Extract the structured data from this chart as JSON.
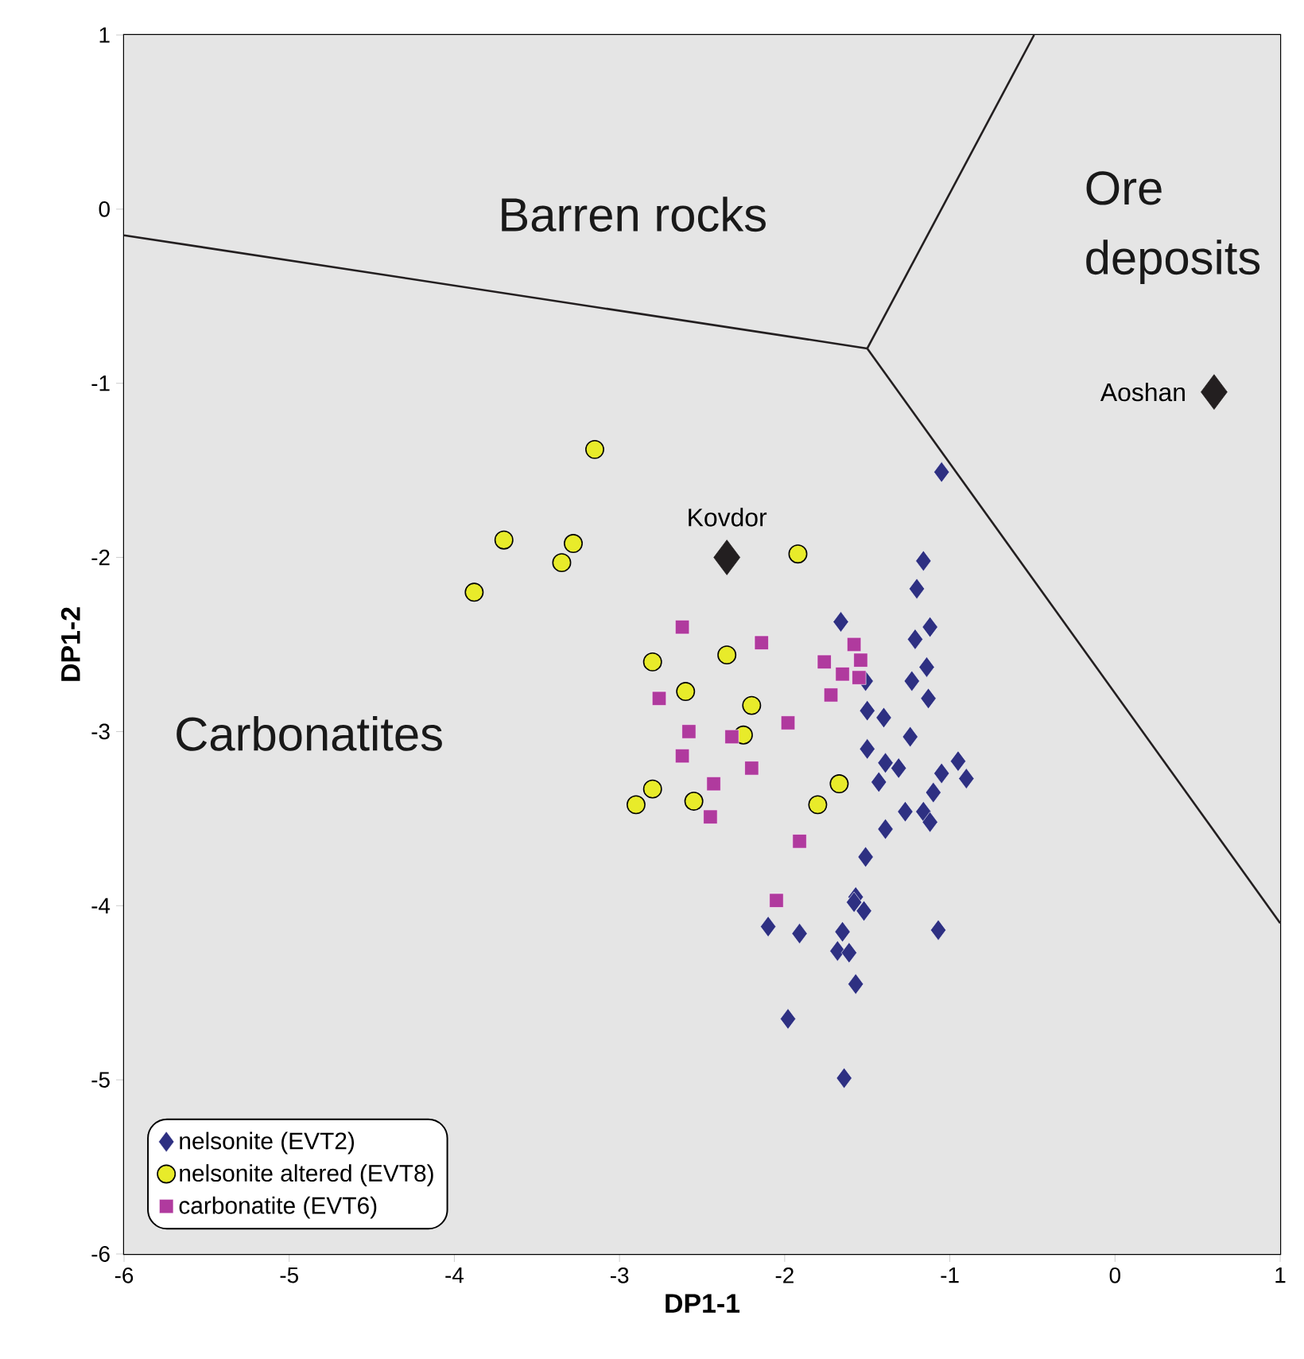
{
  "chart_data": {
    "type": "scatter",
    "xlabel": "DP1-1",
    "ylabel": "DP1-2",
    "xlim": [
      -6,
      1
    ],
    "ylim": [
      -6,
      1
    ],
    "xticks": [
      -6,
      -5,
      -4,
      -3,
      -2,
      -1,
      0,
      1
    ],
    "yticks": [
      -6,
      -5,
      -4,
      -3,
      -2,
      -1,
      0,
      1
    ],
    "legend": "bottom left",
    "series": [
      {
        "type": "line",
        "color": "#231f20",
        "marker": "none",
        "line_style": "solid",
        "x": [
          -6,
          -1.5
        ],
        "values": [
          -0.15,
          -0.8
        ]
      },
      {
        "type": "line",
        "color": "#231f20",
        "marker": "none",
        "line_style": "solid",
        "x": [
          -1.5,
          -0.49
        ],
        "values": [
          -0.8,
          1
        ]
      },
      {
        "type": "line",
        "color": "#231f20",
        "marker": "none",
        "line_style": "solid",
        "x": [
          -1.5,
          1
        ],
        "values": [
          -0.8,
          -4.1
        ]
      },
      {
        "name": "nelsonite (EVT2)",
        "color": "#2e3082",
        "marker": "diamond",
        "x": [
          -1.05,
          -1.16,
          -1.2,
          -1.66,
          -1.12,
          -1.21,
          -1.14,
          -1.23,
          -1.51,
          -1.13,
          -1.5,
          -1.4,
          -1.24,
          -1.5,
          -1.39,
          -1.31,
          -0.95,
          -1.05,
          -0.9,
          -1.43,
          -1.1,
          -1.27,
          -1.16,
          -1.12,
          -1.39,
          -1.51,
          -1.57,
          -1.58,
          -1.52,
          -2.1,
          -1.91,
          -1.65,
          -1.07,
          -1.68,
          -1.61,
          -1.57,
          -1.98,
          -1.64
        ],
        "values": [
          -1.51,
          -2.02,
          -2.18,
          -2.37,
          -2.4,
          -2.47,
          -2.63,
          -2.71,
          -2.71,
          -2.81,
          -2.88,
          -2.92,
          -3.03,
          -3.1,
          -3.18,
          -3.21,
          -3.17,
          -3.24,
          -3.27,
          -3.29,
          -3.35,
          -3.46,
          -3.46,
          -3.52,
          -3.56,
          -3.72,
          -3.95,
          -3.98,
          -4.03,
          -4.12,
          -4.16,
          -4.15,
          -4.14,
          -4.26,
          -4.27,
          -4.45,
          -4.65,
          -4.99
        ]
      },
      {
        "name": "nelsonite altered (EVT8)",
        "color": "#e8eb2a",
        "marker": "circle",
        "x": [
          -3.15,
          -3.7,
          -3.28,
          -3.35,
          -3.88,
          -1.92,
          -2.8,
          -2.35,
          -2.6,
          -2.2,
          -2.25,
          -2.8,
          -2.9,
          -2.55,
          -1.67,
          -1.8
        ],
        "values": [
          -1.38,
          -1.9,
          -1.92,
          -2.03,
          -2.2,
          -1.98,
          -2.6,
          -2.56,
          -2.77,
          -2.85,
          -3.02,
          -3.33,
          -3.42,
          -3.4,
          -3.3,
          -3.42
        ]
      },
      {
        "name": "carbonatite (EVT6)",
        "color": "#b03a9e",
        "marker": "square",
        "x": [
          -2.62,
          -2.14,
          -1.58,
          -1.54,
          -1.76,
          -1.65,
          -1.55,
          -1.72,
          -2.76,
          -1.98,
          -2.58,
          -2.32,
          -2.62,
          -2.2,
          -2.43,
          -2.45,
          -1.91,
          -2.05
        ],
        "values": [
          -2.4,
          -2.49,
          -2.5,
          -2.59,
          -2.6,
          -2.67,
          -2.69,
          -2.79,
          -2.81,
          -2.95,
          -3.0,
          -3.03,
          -3.14,
          -3.21,
          -3.3,
          -3.49,
          -3.63,
          -3.97
        ]
      },
      {
        "color": "#231f20",
        "marker": "diamond",
        "x": [
          -2.35,
          0.6
        ],
        "values": [
          -2.0,
          -1.05
        ]
      }
    ],
    "annotations": [
      "Barren rocks",
      "Ore deposits",
      "Carbonatites",
      {
        "text": "Kovdor",
        "x": -2.35,
        "y": -2.0
      },
      {
        "text": "Aoshan",
        "x": 0.6,
        "y": -1.05
      }
    ]
  }
}
